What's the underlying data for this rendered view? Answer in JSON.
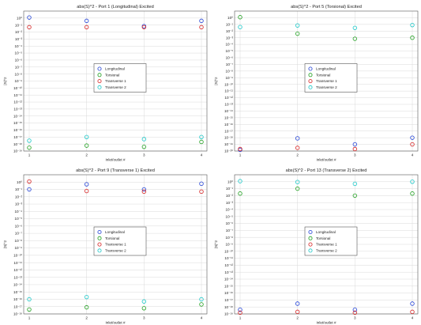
{
  "chart_data": [
    {
      "type": "scatter",
      "title": "abs(S)^2 - Port 1 (Longitudinal) Excited",
      "xlabel": "Inlet/outlet #",
      "ylabel": "|S|^2",
      "x": [
        1,
        2,
        3,
        4
      ],
      "xticks": [
        "1",
        "2",
        "3",
        "4"
      ],
      "yscale": "log",
      "ylim_exp": [
        -19,
        1
      ],
      "yticks": [
        "10⁻¹⁹",
        "10⁻¹⁸",
        "10⁻¹⁷",
        "10⁻¹⁶",
        "10⁻¹⁵",
        "10⁻¹⁴",
        "10⁻¹³",
        "10⁻¹²",
        "10⁻¹¹",
        "10⁻¹⁰",
        "10⁻⁹",
        "10⁻⁸",
        "10⁻⁷",
        "10⁻⁶",
        "10⁻⁵",
        "10⁻⁴",
        "10⁻³",
        "10⁻²",
        "10⁻¹",
        "10⁰"
      ],
      "grid": true,
      "legend_position": "center",
      "series": [
        {
          "name": "Longitudinal",
          "color": "#1f3fd6",
          "values": [
            1.2,
            0.4,
            0.07,
            0.4
          ]
        },
        {
          "name": "Torsional",
          "color": "#1fa01f",
          "values": [
            3e-19,
            6e-19,
            4e-19,
            2e-18
          ]
        },
        {
          "name": "Transverse 1",
          "color": "#d62020",
          "values": [
            0.05,
            0.05,
            0.05,
            0.05
          ]
        },
        {
          "name": "Transverse 2",
          "color": "#18c8c8",
          "values": [
            3e-18,
            1e-17,
            5e-18,
            1e-17
          ]
        }
      ]
    },
    {
      "type": "scatter",
      "title": "abs(S)^2 - Port 5 (Torsional) Excited",
      "xlabel": "Inlet/outlet #",
      "ylabel": "|S|^2",
      "x": [
        1,
        2,
        3,
        4
      ],
      "xticks": [
        "1",
        "2",
        "3",
        "4"
      ],
      "yscale": "log",
      "ylim_exp": [
        -20,
        1
      ],
      "yticks": [
        "10⁻²⁰",
        "10⁻¹⁹",
        "10⁻¹⁸",
        "10⁻¹⁷",
        "10⁻¹⁶",
        "10⁻¹⁵",
        "10⁻¹⁴",
        "10⁻¹³",
        "10⁻¹²",
        "10⁻¹¹",
        "10⁻¹⁰",
        "10⁻⁹",
        "10⁻⁸",
        "10⁻⁷",
        "10⁻⁶",
        "10⁻⁵",
        "10⁻⁴",
        "10⁻³",
        "10⁻²",
        "10⁻¹",
        "10⁰"
      ],
      "grid": true,
      "legend_position": "center",
      "series": [
        {
          "name": "Longitudinal",
          "color": "#1f3fd6",
          "values": [
            1.5e-20,
            8e-19,
            1e-19,
            1e-18
          ]
        },
        {
          "name": "Torsional",
          "color": "#1fa01f",
          "values": [
            1.2,
            0.004,
            0.0007,
            0.001
          ]
        },
        {
          "name": "Transverse 1",
          "color": "#d62020",
          "values": [
            2e-20,
            3e-20,
            2e-20,
            1e-19
          ]
        },
        {
          "name": "Transverse 2",
          "color": "#18c8c8",
          "values": [
            0.04,
            0.07,
            0.03,
            0.08
          ]
        }
      ]
    },
    {
      "type": "scatter",
      "title": "abs(S)^2 - Port 9 (Transverse 1) Excited",
      "xlabel": "Inlet/outlet #",
      "ylabel": "|S|^2",
      "x": [
        1,
        2,
        3,
        4
      ],
      "xticks": [
        "1",
        "2",
        "3",
        "4"
      ],
      "yscale": "log",
      "ylim_exp": [
        -18,
        1
      ],
      "yticks": [
        "10⁻¹⁸",
        "10⁻¹⁷",
        "10⁻¹⁶",
        "10⁻¹⁵",
        "10⁻¹⁴",
        "10⁻¹³",
        "10⁻¹²",
        "10⁻¹¹",
        "10⁻¹⁰",
        "10⁻⁹",
        "10⁻⁸",
        "10⁻⁷",
        "10⁻⁶",
        "10⁻⁵",
        "10⁻⁴",
        "10⁻³",
        "10⁻²",
        "10⁻¹",
        "10⁰"
      ],
      "grid": true,
      "legend_position": "center",
      "series": [
        {
          "name": "Longitudinal",
          "color": "#1f3fd6",
          "values": [
            0.1,
            0.5,
            0.1,
            0.6
          ]
        },
        {
          "name": "Torsional",
          "color": "#1fa01f",
          "values": [
            4e-18,
            8e-18,
            6e-18,
            2e-17
          ]
        },
        {
          "name": "Transverse 1",
          "color": "#d62020",
          "values": [
            1.2,
            0.06,
            0.05,
            0.05
          ]
        },
        {
          "name": "Transverse 2",
          "color": "#18c8c8",
          "values": [
            1e-16,
            2e-16,
            5e-17,
            1e-16
          ]
        }
      ]
    },
    {
      "type": "scatter",
      "title": "abs(S)^2 - Port 13 (Transverse 2) Excited",
      "xlabel": "Inlet/outlet #",
      "ylabel": "|S|^2",
      "x": [
        1,
        2,
        3,
        4
      ],
      "xticks": [
        "1",
        "2",
        "3",
        "4"
      ],
      "yscale": "log",
      "ylim_exp": [
        -19,
        1
      ],
      "yticks": [
        "10⁻¹⁹",
        "10⁻¹⁸",
        "10⁻¹⁷",
        "10⁻¹⁶",
        "10⁻¹⁵",
        "10⁻¹⁴",
        "10⁻¹³",
        "10⁻¹²",
        "10⁻¹¹",
        "10⁻¹⁰",
        "10⁻⁹",
        "10⁻⁸",
        "10⁻⁷",
        "10⁻⁶",
        "10⁻⁵",
        "10⁻⁴",
        "10⁻³",
        "10⁻²",
        "10⁻¹",
        "10⁰"
      ],
      "grid": true,
      "legend_position": "center",
      "series": [
        {
          "name": "Longitudinal",
          "color": "#1f3fd6",
          "values": [
            4e-19,
            3e-18,
            4e-19,
            3e-18
          ]
        },
        {
          "name": "Torsional",
          "color": "#1fa01f",
          "values": [
            0.02,
            0.1,
            0.01,
            0.02
          ]
        },
        {
          "name": "Transverse 1",
          "color": "#d62020",
          "values": [
            1.5e-19,
            2e-19,
            1.5e-19,
            2e-19
          ]
        },
        {
          "name": "Transverse 2",
          "color": "#18c8c8",
          "values": [
            1.2,
            0.9,
            0.5,
            1.0
          ]
        }
      ]
    }
  ]
}
